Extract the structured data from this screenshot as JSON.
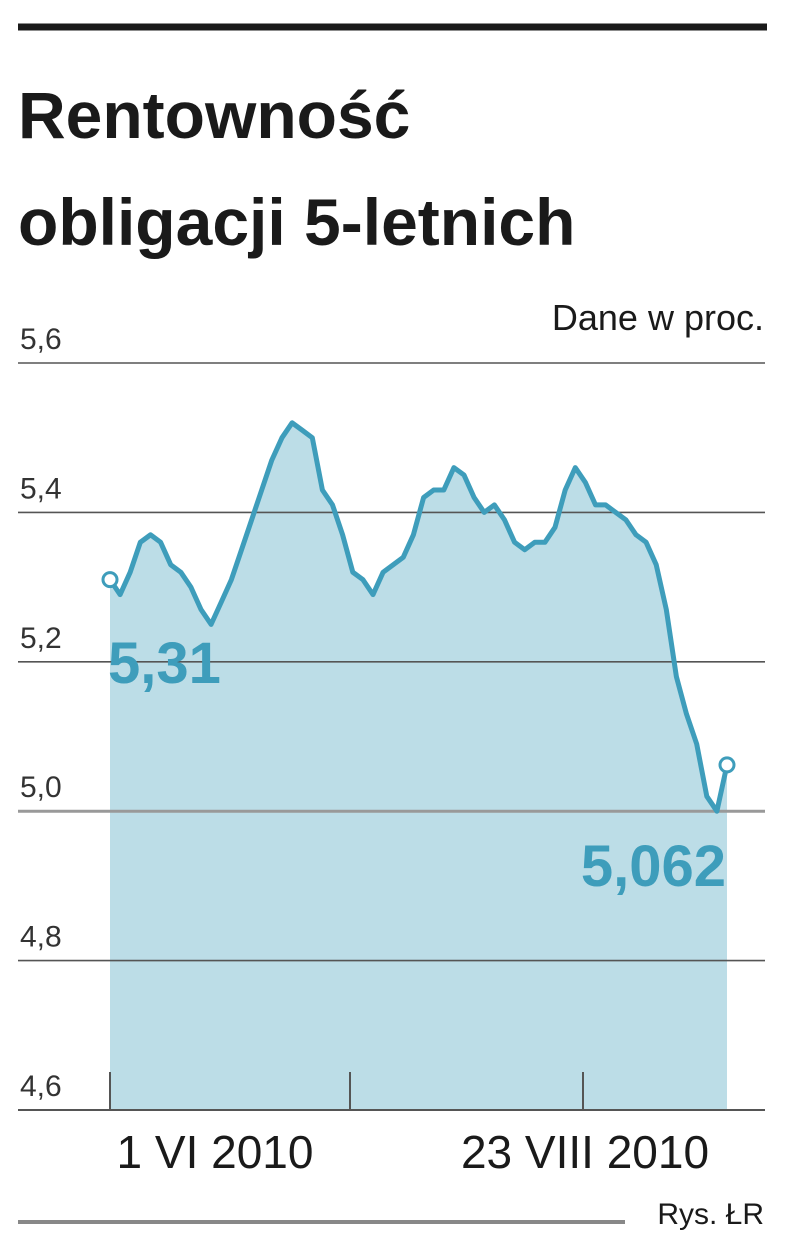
{
  "colors": {
    "line": "#3e9dbb",
    "area": "#bcdde7",
    "text": "#1a1a1a",
    "grid": "#555555"
  },
  "chart_data": {
    "type": "area",
    "title": "Rentowność obligacji 5-letnich",
    "title_lines": [
      "Rentowność",
      "obligacji 5-letnich"
    ],
    "unit": "Dane w proc.",
    "ylim": [
      4.6,
      5.6
    ],
    "yticks": [
      "5,6",
      "5,4",
      "5,2",
      "5,0",
      "4,8",
      "4,6"
    ],
    "ytick_values": [
      5.6,
      5.4,
      5.2,
      5.0,
      4.8,
      4.6
    ],
    "grid": true,
    "xticks": [
      "1 VI 2010",
      "23 VIII 2010"
    ],
    "series": [
      {
        "values": [
          5.31,
          5.29,
          5.32,
          5.36,
          5.37,
          5.36,
          5.33,
          5.32,
          5.3,
          5.27,
          5.25,
          5.28,
          5.31,
          5.35,
          5.39,
          5.43,
          5.47,
          5.5,
          5.52,
          5.51,
          5.5,
          5.43,
          5.41,
          5.37,
          5.32,
          5.31,
          5.29,
          5.32,
          5.33,
          5.34,
          5.37,
          5.42,
          5.43,
          5.43,
          5.46,
          5.45,
          5.42,
          5.4,
          5.41,
          5.39,
          5.36,
          5.35,
          5.36,
          5.36,
          5.38,
          5.43,
          5.46,
          5.44,
          5.41,
          5.41,
          5.4,
          5.39,
          5.37,
          5.36,
          5.33,
          5.27,
          5.18,
          5.13,
          5.09,
          5.02,
          5.0,
          5.062
        ]
      }
    ],
    "annotations": [
      {
        "label": "5,31",
        "value": 5.31,
        "at": "start"
      },
      {
        "label": "5,062",
        "value": 5.062,
        "at": "end"
      }
    ]
  },
  "credit": "Rys. ŁR"
}
